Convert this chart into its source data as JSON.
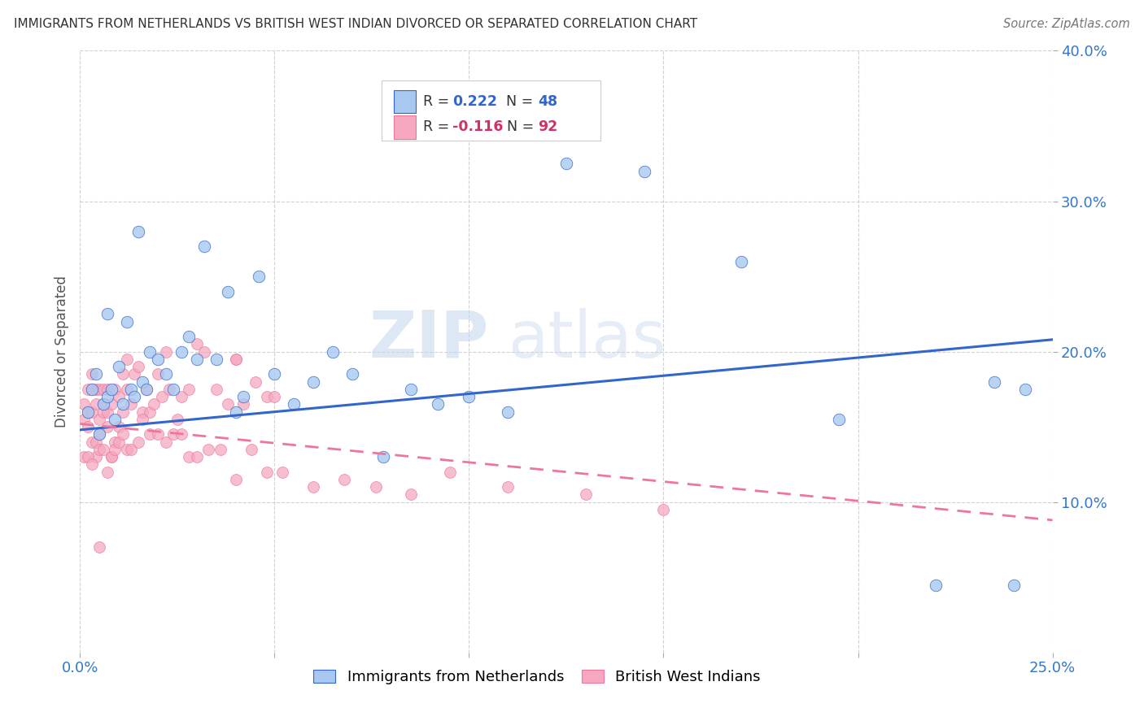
{
  "title": "IMMIGRANTS FROM NETHERLANDS VS BRITISH WEST INDIAN DIVORCED OR SEPARATED CORRELATION CHART",
  "source": "Source: ZipAtlas.com",
  "ylabel": "Divorced or Separated",
  "xmin": 0.0,
  "xmax": 0.25,
  "ymin": 0.0,
  "ymax": 0.4,
  "x_ticks": [
    0.0,
    0.05,
    0.1,
    0.15,
    0.2,
    0.25
  ],
  "x_tick_labels": [
    "0.0%",
    "",
    "",
    "",
    "",
    "25.0%"
  ],
  "y_ticks": [
    0.1,
    0.2,
    0.3,
    0.4
  ],
  "y_tick_labels": [
    "10.0%",
    "20.0%",
    "30.0%",
    "40.0%"
  ],
  "color_blue": "#A8C8F0",
  "color_pink": "#F5A8C0",
  "line_blue": "#3366CC",
  "line_pink": "#EE7799",
  "background_color": "#ffffff",
  "watermark_zip": "ZIP",
  "watermark_atlas": "atlas",
  "blue_trend_start_y": 0.148,
  "blue_trend_end_y": 0.208,
  "pink_trend_start_y": 0.152,
  "pink_trend_end_y": 0.088,
  "blue_scatter_x": [
    0.002,
    0.003,
    0.004,
    0.005,
    0.006,
    0.007,
    0.008,
    0.009,
    0.01,
    0.011,
    0.012,
    0.013,
    0.015,
    0.016,
    0.017,
    0.018,
    0.02,
    0.022,
    0.024,
    0.026,
    0.028,
    0.03,
    0.032,
    0.035,
    0.038,
    0.042,
    0.046,
    0.05,
    0.055,
    0.06,
    0.065,
    0.07,
    0.078,
    0.085,
    0.092,
    0.1,
    0.11,
    0.125,
    0.145,
    0.17,
    0.195,
    0.22,
    0.235,
    0.243,
    0.007,
    0.014,
    0.04,
    0.24
  ],
  "blue_scatter_y": [
    0.16,
    0.175,
    0.185,
    0.145,
    0.165,
    0.17,
    0.175,
    0.155,
    0.19,
    0.165,
    0.22,
    0.175,
    0.28,
    0.18,
    0.175,
    0.2,
    0.195,
    0.185,
    0.175,
    0.2,
    0.21,
    0.195,
    0.27,
    0.195,
    0.24,
    0.17,
    0.25,
    0.185,
    0.165,
    0.18,
    0.2,
    0.185,
    0.13,
    0.175,
    0.165,
    0.17,
    0.16,
    0.325,
    0.32,
    0.26,
    0.155,
    0.045,
    0.18,
    0.175,
    0.225,
    0.17,
    0.16,
    0.045
  ],
  "pink_scatter_x": [
    0.001,
    0.001,
    0.002,
    0.002,
    0.002,
    0.003,
    0.003,
    0.003,
    0.003,
    0.004,
    0.004,
    0.004,
    0.005,
    0.005,
    0.005,
    0.006,
    0.006,
    0.006,
    0.007,
    0.007,
    0.007,
    0.008,
    0.008,
    0.009,
    0.009,
    0.01,
    0.01,
    0.011,
    0.011,
    0.012,
    0.012,
    0.013,
    0.014,
    0.015,
    0.016,
    0.017,
    0.018,
    0.019,
    0.02,
    0.021,
    0.022,
    0.023,
    0.025,
    0.026,
    0.028,
    0.03,
    0.032,
    0.035,
    0.038,
    0.04,
    0.042,
    0.045,
    0.048,
    0.05,
    0.001,
    0.002,
    0.003,
    0.004,
    0.005,
    0.006,
    0.007,
    0.008,
    0.009,
    0.01,
    0.011,
    0.012,
    0.013,
    0.015,
    0.016,
    0.018,
    0.02,
    0.022,
    0.024,
    0.026,
    0.028,
    0.03,
    0.033,
    0.036,
    0.04,
    0.044,
    0.048,
    0.052,
    0.06,
    0.068,
    0.076,
    0.085,
    0.095,
    0.11,
    0.13,
    0.15,
    0.005,
    0.04
  ],
  "pink_scatter_y": [
    0.155,
    0.165,
    0.15,
    0.175,
    0.16,
    0.14,
    0.16,
    0.175,
    0.185,
    0.13,
    0.165,
    0.175,
    0.155,
    0.145,
    0.175,
    0.16,
    0.165,
    0.175,
    0.15,
    0.16,
    0.175,
    0.13,
    0.165,
    0.14,
    0.175,
    0.15,
    0.17,
    0.16,
    0.185,
    0.175,
    0.195,
    0.165,
    0.185,
    0.19,
    0.16,
    0.175,
    0.16,
    0.165,
    0.185,
    0.17,
    0.2,
    0.175,
    0.155,
    0.17,
    0.175,
    0.205,
    0.2,
    0.175,
    0.165,
    0.195,
    0.165,
    0.18,
    0.17,
    0.17,
    0.13,
    0.13,
    0.125,
    0.14,
    0.135,
    0.135,
    0.12,
    0.13,
    0.135,
    0.14,
    0.145,
    0.135,
    0.135,
    0.14,
    0.155,
    0.145,
    0.145,
    0.14,
    0.145,
    0.145,
    0.13,
    0.13,
    0.135,
    0.135,
    0.115,
    0.135,
    0.12,
    0.12,
    0.11,
    0.115,
    0.11,
    0.105,
    0.12,
    0.11,
    0.105,
    0.095,
    0.07,
    0.195
  ]
}
